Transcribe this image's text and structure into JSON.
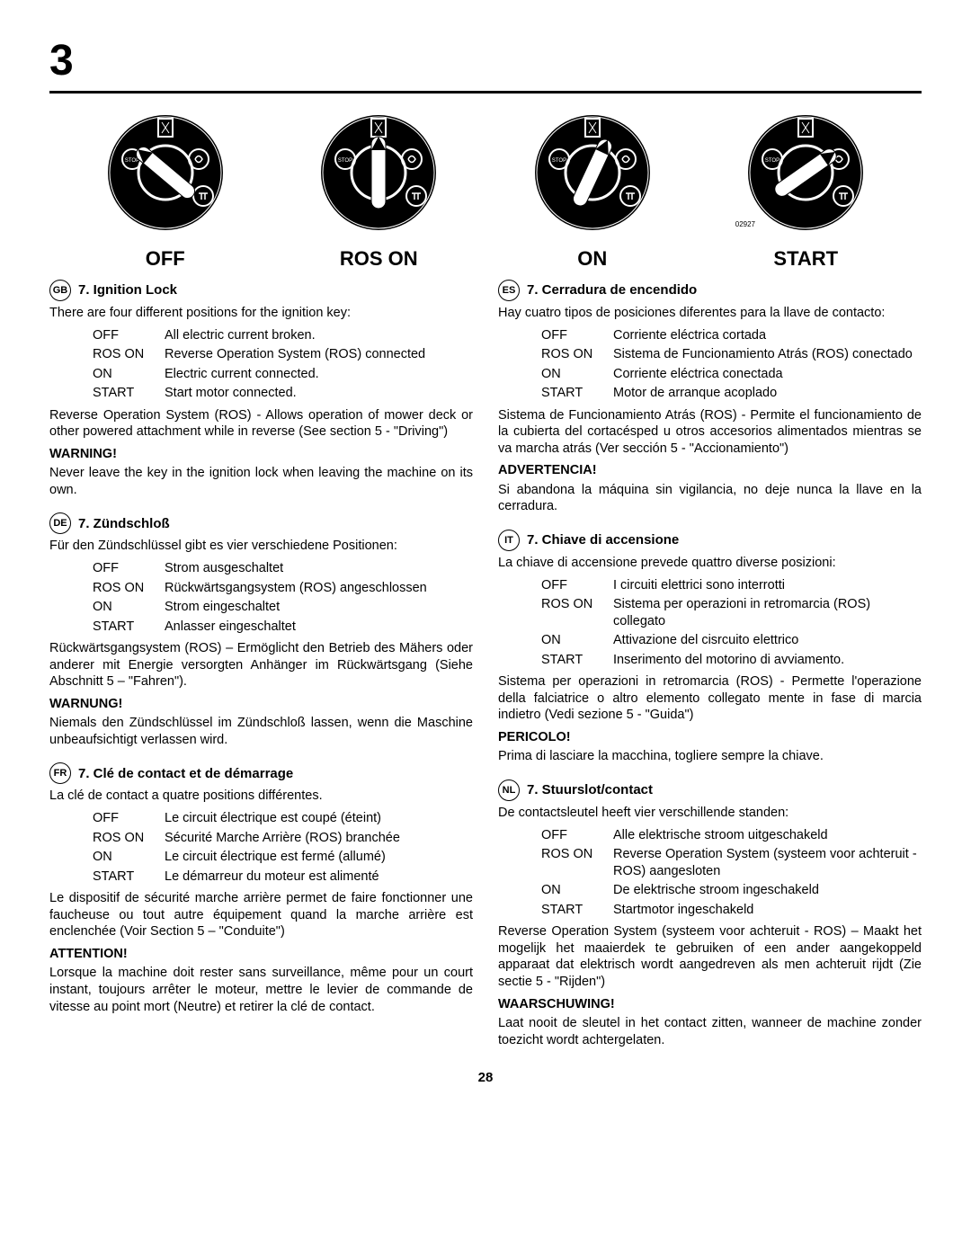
{
  "page_number_top": "3",
  "dials": {
    "labels": [
      "Off",
      "Ros On",
      "On",
      "Start"
    ],
    "angles": [
      -50,
      0,
      25,
      55
    ],
    "part_no": "02927"
  },
  "page_number_bottom": "28",
  "left": [
    {
      "lang": "GB",
      "title": "7. Ignition Lock",
      "intro": "There are four different positions for the ignition key:",
      "defs": [
        [
          "OFF",
          "All electric current broken."
        ],
        [
          "ROS ON",
          "Reverse Operation System (ROS) connected"
        ],
        [
          "ON",
          "Electric current connected."
        ],
        [
          "START",
          "Start motor connected."
        ]
      ],
      "body": "Reverse Operation System (ROS) - Allows operation of mower deck or other powered attachment while in reverse (See section 5 - \"Driving\")",
      "warn_head": "WARNING!",
      "warn_body": "Never leave the key in the ignition lock when leaving the machine on its own."
    },
    {
      "lang": "DE",
      "title": "7. Zündschloß",
      "intro": "Für den Zündschlüssel gibt es vier verschiedene Positionen:",
      "defs": [
        [
          "OFF",
          "Strom ausgeschaltet"
        ],
        [
          "ROS ON",
          "Rückwärtsgangsystem (ROS) angeschlossen"
        ],
        [
          "ON",
          "Strom eingeschaltet"
        ],
        [
          "START",
          "Anlasser eingeschaltet"
        ]
      ],
      "body": "Rückwärtsgangsystem (ROS) – Ermöglicht den Betrieb des Mähers oder anderer mit Energie versorgten Anhänger im Rückwärtsgang (Siehe Abschnitt 5 – \"Fahren\").",
      "warn_head": "WARNUNG!",
      "warn_body": "Niemals den Zündschlüssel im Zündschloß lassen, wenn die Maschine unbeaufsichtigt verlassen wird."
    },
    {
      "lang": "FR",
      "title": "7. Clé de contact et de démarrage",
      "intro": "La clé de contact a quatre positions différentes.",
      "defs": [
        [
          "OFF",
          "Le circuit électrique est coupé (éteint)"
        ],
        [
          "ROS ON",
          "Sécurité Marche Arrière (ROS) branchée"
        ],
        [
          "ON",
          "Le circuit électrique est fermé (allumé)"
        ],
        [
          "START",
          "Le démarreur du moteur est alimenté"
        ]
      ],
      "body": "Le dispositif de sécurité marche arrière permet de faire fonctionner une faucheuse ou tout autre équipement quand la marche arrière est enclenchée (Voir Section 5 – \"Conduite\")",
      "warn_head": "ATTENTION!",
      "warn_body": "Lorsque la machine doit rester sans surveillance, même pour un court instant, toujours arrêter le moteur, mettre le levier de commande de vitesse au point mort (Neutre) et retirer la clé de contact."
    }
  ],
  "right": [
    {
      "lang": "ES",
      "title": "7. Cerradura de encendido",
      "intro": "Hay cuatro tipos de posiciones diferentes para la llave de contacto:",
      "defs": [
        [
          "OFF",
          "Corriente eléctrica cortada"
        ],
        [
          "ROS ON",
          "Sistema de Funcionamiento Atrás (ROS) conectado"
        ],
        [
          "ON",
          "Corriente eléctrica conectada"
        ],
        [
          "START",
          "Motor de arranque acoplado"
        ]
      ],
      "body": "Sistema de Funcionamiento Atrás (ROS) - Permite el funcionamiento de la cubierta del cortacésped u otros accesorios alimentados mientras se va marcha atrás (Ver sección 5 - \"Accionamiento\")",
      "warn_head": "ADVERTENCIA!",
      "warn_body": "Si abandona la máquina sin vigilancia, no deje nunca la llave  en la cerradura."
    },
    {
      "lang": "IT",
      "title": "7. Chiave di accensione",
      "intro": "La chiave di accensione prevede quattro diverse posizioni:",
      "defs": [
        [
          "OFF",
          "I circuiti elettrici sono interrotti"
        ],
        [
          "ROS ON",
          "Sistema per operazioni in retromarcia (ROS) collegato"
        ],
        [
          "ON",
          "Attivazione del cisrcuito elettrico"
        ],
        [
          "START",
          "Inserimento del motorino di avviamento."
        ]
      ],
      "body": "Sistema per operazioni in retromarcia (ROS) - Permette l'operazione della falciatrice o altro elemento collegato mente in fase di marcia indietro (Vedi sezione 5 - \"Guida\")",
      "warn_head": "PERICOLO!",
      "warn_body": "Prima di lasciare la macchina, togliere sempre la chiave."
    },
    {
      "lang": "NL",
      "title": "7. Stuurslot/contact",
      "intro": "De contactsleutel heeft vier verschillende standen:",
      "defs": [
        [
          "OFF",
          "Alle elektrische stroom uitgeschakeld"
        ],
        [
          "ROS ON",
          "Reverse Operation System (systeem voor achteruit - ROS) aangesloten"
        ],
        [
          "ON",
          "De elektrische stroom ingeschakeld"
        ],
        [
          "START",
          "Startmotor ingeschakeld"
        ]
      ],
      "body": "Reverse Operation System (systeem voor achteruit - ROS) – Maakt het mogelijk het maaierdek te gebruiken of een ander aangekoppeld apparaat dat elektrisch wordt aangedreven als men achteruit rijdt (Zie sectie 5 - \"Rijden\")",
      "warn_head": "WAARSCHUWING!",
      "warn_body": "Laat nooit de sleutel in het contact zitten, wanneer de machine zonder toezicht wordt achtergelaten."
    }
  ]
}
